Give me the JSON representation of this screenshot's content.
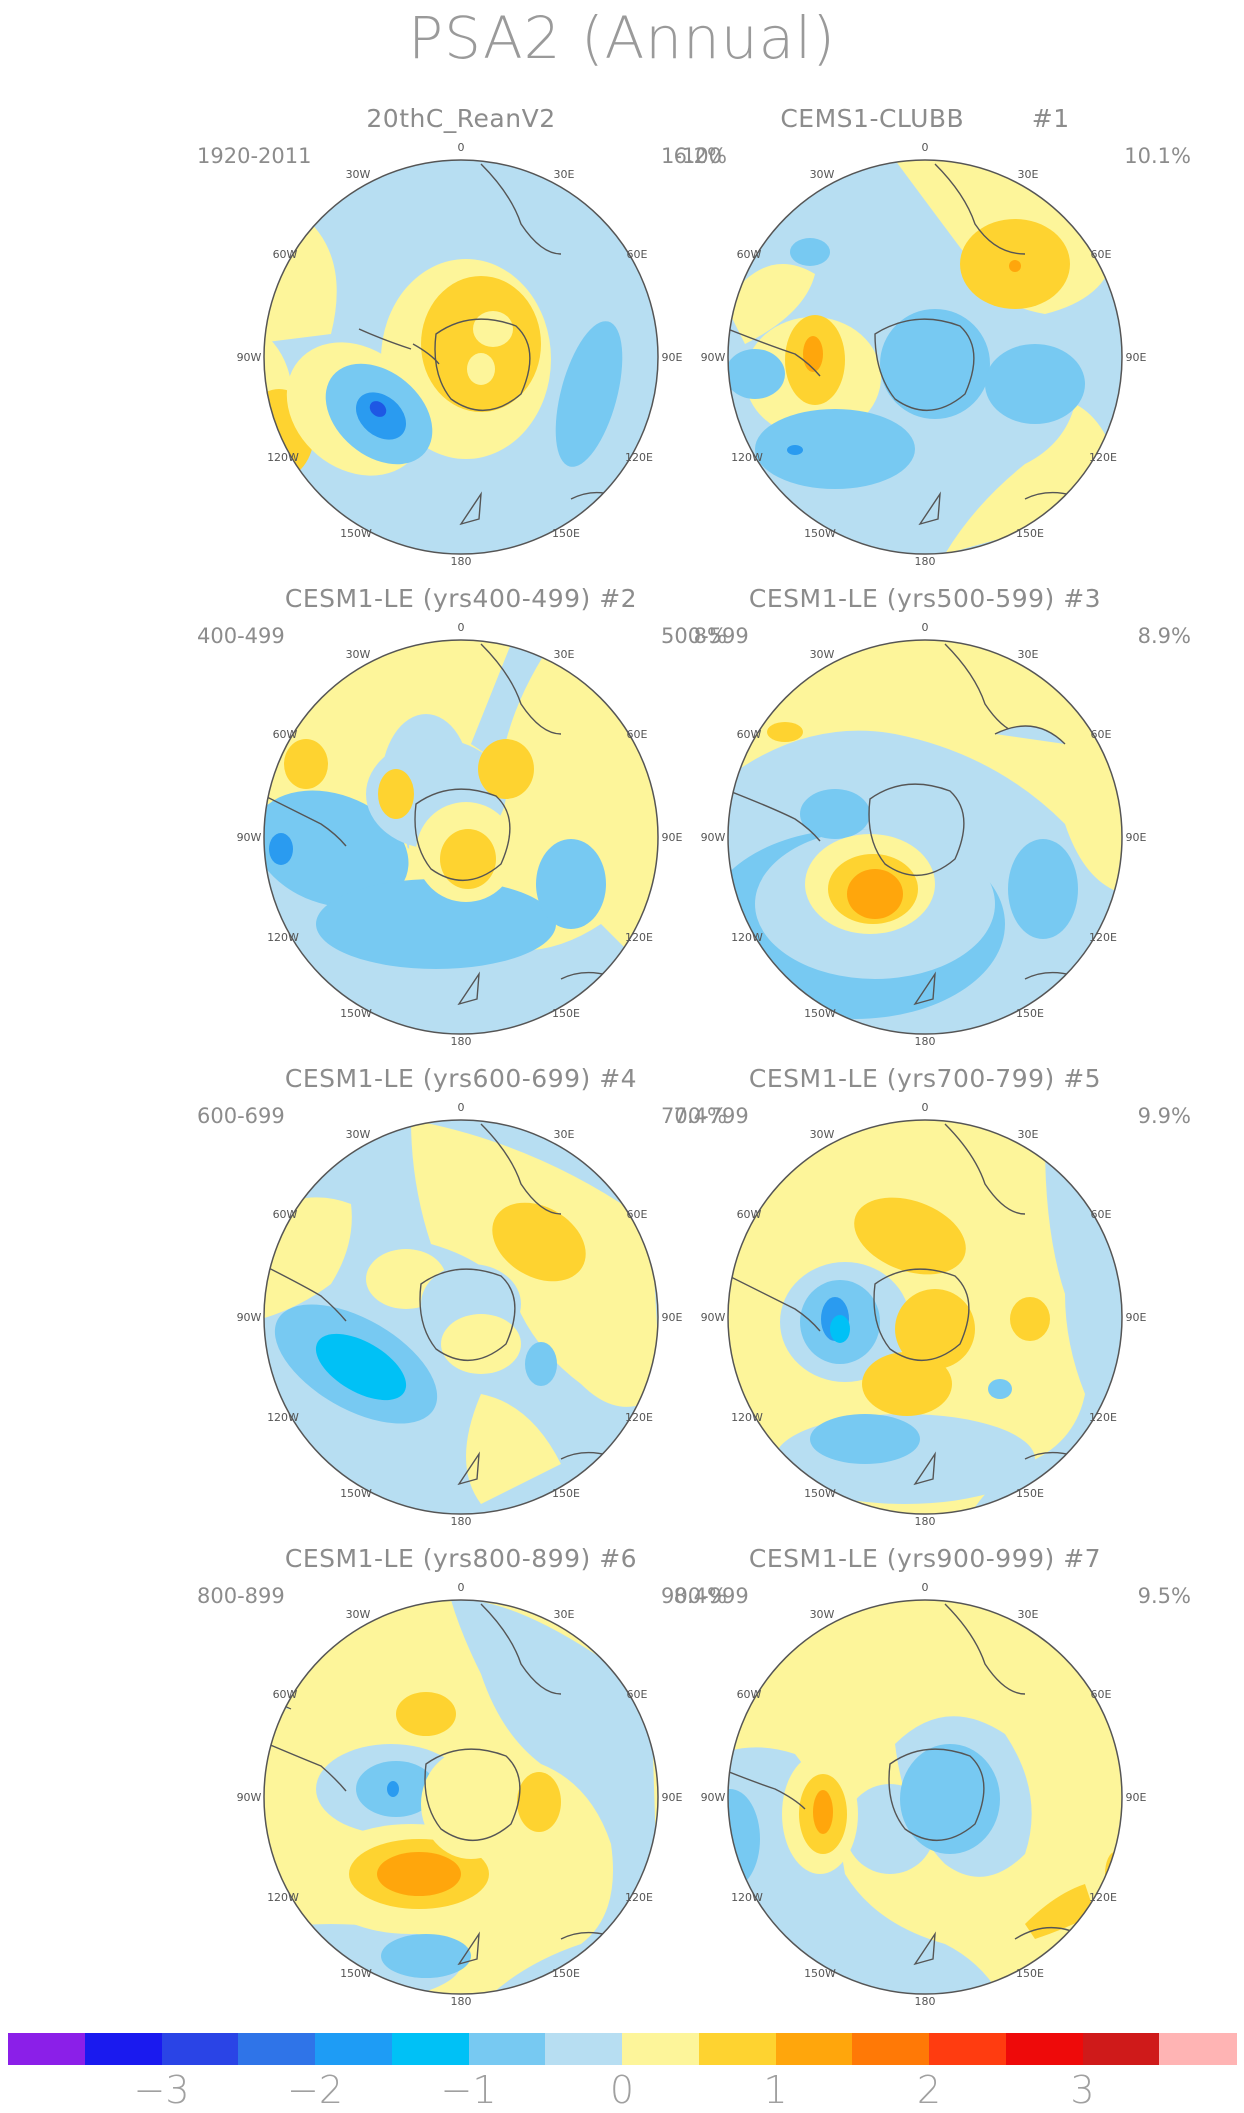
{
  "title": "PSA2 (Annual)",
  "palette": {
    "neg3": "#1e58e4",
    "neg2": "#2a9bf0",
    "neg1": "#77c9f2",
    "neg0": "#b7def2",
    "pos0": "#fdf59a",
    "pos1": "#fed330",
    "pos2": "#ffa60c",
    "pos3": "#ff7906"
  },
  "panels": [
    {
      "title": "20thC_ReanV2",
      "years": "1920-2011",
      "percent": "6.2%"
    },
    {
      "title": "CEMS1-CLUBB        #1",
      "years": "1-100",
      "percent": "10.1%"
    },
    {
      "title": "CESM1-LE (yrs400-499) #2",
      "years": "400-499",
      "percent": "8%"
    },
    {
      "title": "CESM1-LE (yrs500-599) #3",
      "years": "500-599",
      "percent": "8.9%"
    },
    {
      "title": "CESM1-LE (yrs600-699) #4",
      "years": "600-699",
      "percent": "7.4%"
    },
    {
      "title": "CESM1-LE (yrs700-799) #5",
      "years": "700-799",
      "percent": "9.9%"
    },
    {
      "title": "CESM1-LE (yrs800-899) #6",
      "years": "800-899",
      "percent": "8.4%"
    },
    {
      "title": "CESM1-LE (yrs900-999) #7",
      "years": "900-999",
      "percent": "9.5%"
    }
  ],
  "longitude_labels": [
    "0",
    "30E",
    "60E",
    "90E",
    "120E",
    "150E",
    "180",
    "150W",
    "120W",
    "90W",
    "60W",
    "30W"
  ],
  "colorbar": {
    "colors": [
      "#8b1fe8",
      "#1a1aef",
      "#2a44e6",
      "#2f74e8",
      "#1e9cf5",
      "#00c1f6",
      "#77c9f2",
      "#b7def2",
      "#fdf59a",
      "#fed330",
      "#ffa60c",
      "#ff7906",
      "#ff3c10",
      "#ee0a0a",
      "#cf1a1a",
      "#ffb4b4"
    ],
    "labels": [
      "−3",
      "−2",
      "−1",
      "0",
      "1",
      "2",
      "3"
    ]
  }
}
